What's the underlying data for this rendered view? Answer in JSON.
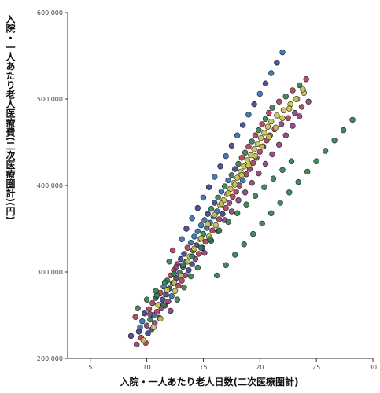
{
  "chart_data": {
    "type": "scatter",
    "title": "",
    "xlabel": "入院・一人あたり老人日数(二次医療圏計)",
    "ylabel": "入院・一人あたり老人医療費(二次医療圏計)(円)",
    "xlim": [
      3,
      30
    ],
    "ylim": [
      200000,
      600000
    ],
    "x_ticks": [
      "5",
      "10",
      "15",
      "20",
      "25",
      "30"
    ],
    "y_ticks": [
      "200,000",
      "300,000",
      "400,000",
      "500,000",
      "600,000"
    ],
    "grid": false,
    "legend": "none",
    "colors": [
      "#3c3f8a",
      "#2b6fb0",
      "#c8c24a",
      "#b03a4e",
      "#2f7d4c",
      "#8a3d7a"
    ],
    "points": [
      [
        8.6,
        226000,
        0
      ],
      [
        9.0,
        248000,
        3
      ],
      [
        9.1,
        216000,
        5
      ],
      [
        9.3,
        231000,
        0
      ],
      [
        9.5,
        224000,
        3
      ],
      [
        9.6,
        243000,
        1
      ],
      [
        9.8,
        252000,
        0
      ],
      [
        9.9,
        218000,
        3
      ],
      [
        10.0,
        238000,
        5
      ],
      [
        10.1,
        229000,
        0
      ],
      [
        10.2,
        257000,
        3
      ],
      [
        10.3,
        245000,
        4
      ],
      [
        10.4,
        233000,
        0
      ],
      [
        10.5,
        264000,
        3
      ],
      [
        10.6,
        250000,
        1
      ],
      [
        10.7,
        241000,
        5
      ],
      [
        10.8,
        270000,
        0
      ],
      [
        10.9,
        254000,
        3
      ],
      [
        11.0,
        262000,
        2
      ],
      [
        11.1,
        247000,
        0
      ],
      [
        11.2,
        276000,
        3
      ],
      [
        11.3,
        258000,
        5
      ],
      [
        11.4,
        268000,
        0
      ],
      [
        11.5,
        283000,
        1
      ],
      [
        11.6,
        261000,
        3
      ],
      [
        11.7,
        274000,
        0
      ],
      [
        11.8,
        290000,
        4
      ],
      [
        11.9,
        266000,
        5
      ],
      [
        12.0,
        281000,
        0
      ],
      [
        12.1,
        296000,
        3
      ],
      [
        12.2,
        272000,
        1
      ],
      [
        12.3,
        287000,
        0
      ],
      [
        12.4,
        302000,
        3
      ],
      [
        12.5,
        278000,
        2
      ],
      [
        12.6,
        293000,
        0
      ],
      [
        12.7,
        309000,
        5
      ],
      [
        12.8,
        284000,
        3
      ],
      [
        12.9,
        299000,
        1
      ],
      [
        13.0,
        315000,
        0
      ],
      [
        13.1,
        290000,
        3
      ],
      [
        13.2,
        306000,
        4
      ],
      [
        13.3,
        321000,
        0
      ],
      [
        13.4,
        296000,
        5
      ],
      [
        13.5,
        312000,
        1
      ],
      [
        13.6,
        328000,
        3
      ],
      [
        13.7,
        302000,
        0
      ],
      [
        13.8,
        318000,
        2
      ],
      [
        13.9,
        334000,
        1
      ],
      [
        14.0,
        309000,
        0
      ],
      [
        14.1,
        325000,
        3
      ],
      [
        14.2,
        341000,
        1
      ],
      [
        14.3,
        315000,
        5
      ],
      [
        14.4,
        331000,
        0
      ],
      [
        14.5,
        347000,
        1
      ],
      [
        14.6,
        321000,
        3
      ],
      [
        14.7,
        338000,
        2
      ],
      [
        14.8,
        354000,
        1
      ],
      [
        14.9,
        328000,
        0
      ],
      [
        15.0,
        344000,
        4
      ],
      [
        15.1,
        360000,
        1
      ],
      [
        15.2,
        335000,
        3
      ],
      [
        15.3,
        351000,
        1
      ],
      [
        15.4,
        367000,
        0
      ],
      [
        15.5,
        341000,
        2
      ],
      [
        15.6,
        357000,
        1
      ],
      [
        15.7,
        373000,
        4
      ],
      [
        15.8,
        348000,
        3
      ],
      [
        15.9,
        364000,
        1
      ],
      [
        16.0,
        380000,
        0
      ],
      [
        16.1,
        354000,
        2
      ],
      [
        16.2,
        370000,
        1
      ],
      [
        16.3,
        386000,
        4
      ],
      [
        16.4,
        361000,
        3
      ],
      [
        16.5,
        377000,
        2
      ],
      [
        16.6,
        393000,
        1
      ],
      [
        16.7,
        367000,
        0
      ],
      [
        16.8,
        383000,
        2
      ],
      [
        16.9,
        399000,
        4
      ],
      [
        17.0,
        374000,
        3
      ],
      [
        17.1,
        390000,
        2
      ],
      [
        17.2,
        406000,
        1
      ],
      [
        17.3,
        380000,
        5
      ],
      [
        17.4,
        396000,
        2
      ],
      [
        17.5,
        412000,
        4
      ],
      [
        17.6,
        387000,
        3
      ],
      [
        17.7,
        403000,
        2
      ],
      [
        17.8,
        419000,
        0
      ],
      [
        17.9,
        393000,
        3
      ],
      [
        18.0,
        409000,
        2
      ],
      [
        18.1,
        425000,
        4
      ],
      [
        18.2,
        400000,
        5
      ],
      [
        18.3,
        416000,
        2
      ],
      [
        18.4,
        432000,
        3
      ],
      [
        18.5,
        406000,
        1
      ],
      [
        18.6,
        422000,
        2
      ],
      [
        18.7,
        438000,
        4
      ],
      [
        18.8,
        413000,
        3
      ],
      [
        18.9,
        429000,
        2
      ],
      [
        19.0,
        445000,
        3
      ],
      [
        19.1,
        419000,
        5
      ],
      [
        19.2,
        435000,
        2
      ],
      [
        19.3,
        451000,
        4
      ],
      [
        19.4,
        426000,
        3
      ],
      [
        19.5,
        442000,
        2
      ],
      [
        19.6,
        458000,
        3
      ],
      [
        19.7,
        432000,
        5
      ],
      [
        19.8,
        448000,
        2
      ],
      [
        19.9,
        464000,
        4
      ],
      [
        20.0,
        439000,
        3
      ],
      [
        20.1,
        455000,
        2
      ],
      [
        20.2,
        471000,
        3
      ],
      [
        20.3,
        445000,
        5
      ],
      [
        20.4,
        461000,
        2
      ],
      [
        20.5,
        477000,
        4
      ],
      [
        20.6,
        452000,
        3
      ],
      [
        20.7,
        468000,
        2
      ],
      [
        20.8,
        484000,
        3
      ],
      [
        20.9,
        458000,
        5
      ],
      [
        21.0,
        474000,
        2
      ],
      [
        21.1,
        490000,
        4
      ],
      [
        21.3,
        465000,
        3
      ],
      [
        21.5,
        481000,
        2
      ],
      [
        21.7,
        497000,
        3
      ],
      [
        21.9,
        471000,
        5
      ],
      [
        22.1,
        487000,
        2
      ],
      [
        22.3,
        503000,
        4
      ],
      [
        22.5,
        478000,
        3
      ],
      [
        22.7,
        494000,
        2
      ],
      [
        22.9,
        510000,
        3
      ],
      [
        23.1,
        484000,
        5
      ],
      [
        23.3,
        500000,
        2
      ],
      [
        23.5,
        516000,
        4
      ],
      [
        23.7,
        491000,
        3
      ],
      [
        23.9,
        507000,
        2
      ],
      [
        24.1,
        523000,
        3
      ],
      [
        24.3,
        497000,
        5
      ],
      [
        9.4,
        236000,
        1
      ],
      [
        9.7,
        221000,
        2
      ],
      [
        10.3,
        251000,
        5
      ],
      [
        10.6,
        236000,
        2
      ],
      [
        10.9,
        273000,
        4
      ],
      [
        11.2,
        246000,
        2
      ],
      [
        11.5,
        262000,
        4
      ],
      [
        11.8,
        279000,
        2
      ],
      [
        12.1,
        255000,
        5
      ],
      [
        12.4,
        288000,
        2
      ],
      [
        12.7,
        268000,
        4
      ],
      [
        13.0,
        296000,
        2
      ],
      [
        13.3,
        282000,
        4
      ],
      [
        13.6,
        312000,
        2
      ],
      [
        13.9,
        295000,
        4
      ],
      [
        14.2,
        327000,
        2
      ],
      [
        14.5,
        305000,
        4
      ],
      [
        14.8,
        339000,
        2
      ],
      [
        15.1,
        322000,
        5
      ],
      [
        15.4,
        355000,
        2
      ],
      [
        15.7,
        336000,
        4
      ],
      [
        16.0,
        366000,
        2
      ],
      [
        16.3,
        347000,
        5
      ],
      [
        16.6,
        379000,
        2
      ],
      [
        16.9,
        360000,
        5
      ],
      [
        17.2,
        391000,
        2
      ],
      [
        17.5,
        370000,
        5
      ],
      [
        17.8,
        401000,
        2
      ],
      [
        18.1,
        383000,
        5
      ],
      [
        18.4,
        412000,
        2
      ],
      [
        18.7,
        392000,
        5
      ],
      [
        19.0,
        423000,
        2
      ],
      [
        19.3,
        403000,
        5
      ],
      [
        19.6,
        434000,
        2
      ],
      [
        19.9,
        414000,
        5
      ],
      [
        20.2,
        445000,
        2
      ],
      [
        20.5,
        425000,
        5
      ],
      [
        20.8,
        456000,
        2
      ],
      [
        21.1,
        436000,
        5
      ],
      [
        21.4,
        467000,
        2
      ],
      [
        21.7,
        447000,
        5
      ],
      [
        22.0,
        478000,
        2
      ],
      [
        22.3,
        458000,
        5
      ],
      [
        22.6,
        489000,
        2
      ],
      [
        22.9,
        469000,
        5
      ],
      [
        23.2,
        500000,
        2
      ],
      [
        23.5,
        480000,
        5
      ],
      [
        23.8,
        511000,
        2
      ],
      [
        12.0,
        312000,
        4
      ],
      [
        12.3,
        325000,
        3
      ],
      [
        12.6,
        306000,
        5
      ],
      [
        13.1,
        338000,
        1
      ],
      [
        13.5,
        350000,
        0
      ],
      [
        14.0,
        362000,
        1
      ],
      [
        14.5,
        374000,
        0
      ],
      [
        15.0,
        386000,
        1
      ],
      [
        15.5,
        398000,
        0
      ],
      [
        16.0,
        410000,
        1
      ],
      [
        16.5,
        422000,
        0
      ],
      [
        17.0,
        434000,
        1
      ],
      [
        17.5,
        446000,
        0
      ],
      [
        18.0,
        458000,
        1
      ],
      [
        18.5,
        470000,
        0
      ],
      [
        19.0,
        482000,
        1
      ],
      [
        19.5,
        494000,
        0
      ],
      [
        20.0,
        506000,
        1
      ],
      [
        20.5,
        518000,
        0
      ],
      [
        21.0,
        530000,
        1
      ],
      [
        21.5,
        542000,
        0
      ],
      [
        22.0,
        554000,
        1
      ],
      [
        16.2,
        296000,
        4
      ],
      [
        17.0,
        308000,
        4
      ],
      [
        17.8,
        320000,
        4
      ],
      [
        18.6,
        332000,
        4
      ],
      [
        19.4,
        344000,
        4
      ],
      [
        20.2,
        356000,
        4
      ],
      [
        21.0,
        368000,
        4
      ],
      [
        21.8,
        380000,
        4
      ],
      [
        22.6,
        392000,
        4
      ],
      [
        23.4,
        404000,
        4
      ],
      [
        24.2,
        416000,
        4
      ],
      [
        25.0,
        428000,
        4
      ],
      [
        25.8,
        440000,
        4
      ],
      [
        26.6,
        452000,
        4
      ],
      [
        27.4,
        464000,
        4
      ],
      [
        28.2,
        476000,
        4
      ],
      [
        9.2,
        258000,
        4
      ],
      [
        10.0,
        268000,
        4
      ],
      [
        10.8,
        278000,
        4
      ],
      [
        11.6,
        288000,
        4
      ],
      [
        12.4,
        298000,
        4
      ],
      [
        13.2,
        308000,
        4
      ],
      [
        14.0,
        318000,
        4
      ],
      [
        14.8,
        328000,
        4
      ],
      [
        15.6,
        338000,
        4
      ],
      [
        16.4,
        348000,
        4
      ],
      [
        17.2,
        358000,
        4
      ],
      [
        18.0,
        368000,
        4
      ],
      [
        18.8,
        378000,
        4
      ],
      [
        19.6,
        388000,
        4
      ],
      [
        20.4,
        398000,
        4
      ],
      [
        21.2,
        408000,
        4
      ],
      [
        22.0,
        418000,
        4
      ],
      [
        22.8,
        428000,
        4
      ]
    ]
  }
}
